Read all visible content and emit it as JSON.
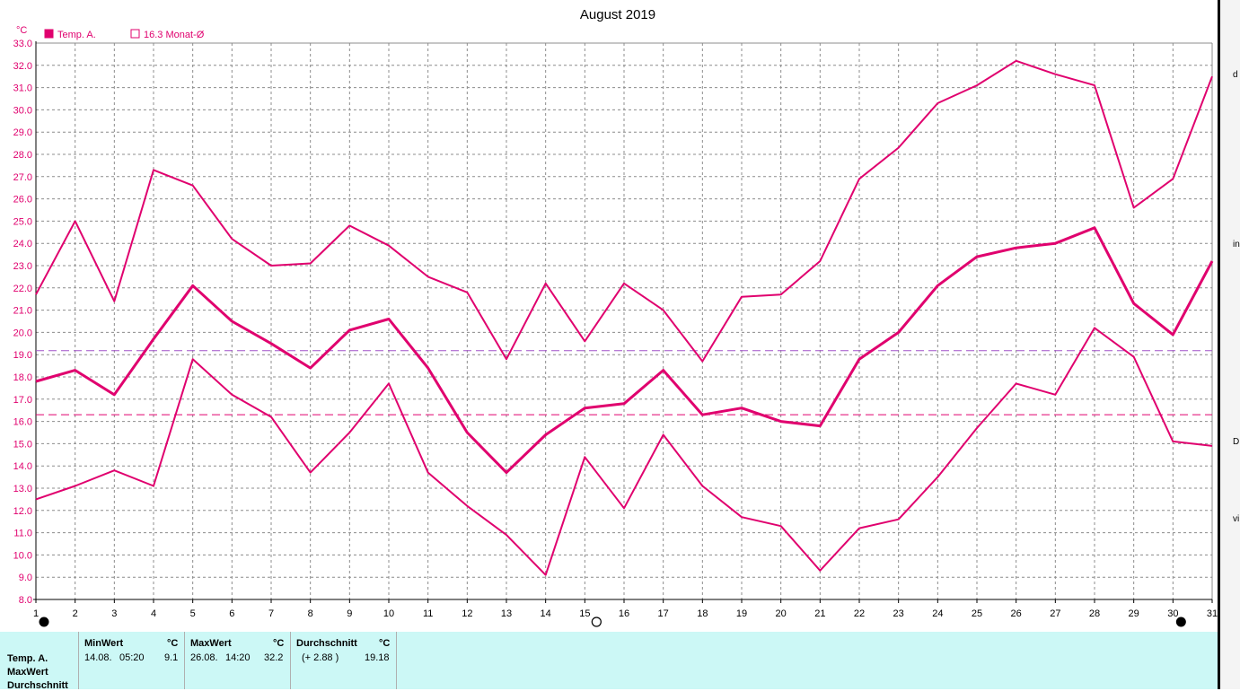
{
  "chart_data": {
    "type": "line",
    "title": "August 2019",
    "unit": "°C",
    "x": [
      1,
      2,
      3,
      4,
      5,
      6,
      7,
      8,
      9,
      10,
      11,
      12,
      13,
      14,
      15,
      16,
      17,
      18,
      19,
      20,
      21,
      22,
      23,
      24,
      25,
      26,
      27,
      28,
      29,
      30,
      31
    ],
    "xlim": [
      1,
      31
    ],
    "ylim": [
      8.0,
      33.0
    ],
    "yticks": [
      "8.0",
      "9.0",
      "10.0",
      "11.0",
      "12.0",
      "13.0",
      "14.0",
      "15.0",
      "16.0",
      "17.0",
      "18.0",
      "19.0",
      "20.0",
      "21.0",
      "22.0",
      "23.0",
      "24.0",
      "25.0",
      "26.0",
      "27.0",
      "28.0",
      "29.0",
      "30.0",
      "31.0",
      "32.0",
      "33.0"
    ],
    "grid": true,
    "legend_position": "top-left",
    "legend": [
      {
        "label": "Temp. A.",
        "style": "filled"
      },
      {
        "label": "16.3 Monat-Ø",
        "style": "outline"
      }
    ],
    "color": "#e0006e",
    "reference_lines": [
      {
        "value": 19.18,
        "color": "#a050c8"
      },
      {
        "value": 16.3,
        "color": "#e0006e"
      }
    ],
    "series": [
      {
        "role": "max",
        "values": [
          21.7,
          25.0,
          21.4,
          27.3,
          26.6,
          24.2,
          23.0,
          23.1,
          24.8,
          23.9,
          22.5,
          21.8,
          18.8,
          22.2,
          19.6,
          22.2,
          21.0,
          18.7,
          21.6,
          21.7,
          23.2,
          26.9,
          28.3,
          30.3,
          31.1,
          32.2,
          31.6,
          31.1,
          25.6,
          26.9,
          31.5
        ]
      },
      {
        "role": "mean",
        "values": [
          17.8,
          18.3,
          17.2,
          19.7,
          22.1,
          20.5,
          19.5,
          18.4,
          20.1,
          20.6,
          18.4,
          15.5,
          13.7,
          15.4,
          16.6,
          16.8,
          18.3,
          16.3,
          16.6,
          16.0,
          15.8,
          18.8,
          20.0,
          22.1,
          23.4,
          23.8,
          24.0,
          24.7,
          21.3,
          19.9,
          23.2
        ]
      },
      {
        "role": "min",
        "values": [
          12.5,
          13.1,
          13.8,
          13.1,
          18.8,
          17.2,
          16.2,
          13.7,
          15.5,
          17.7,
          13.7,
          12.2,
          10.9,
          9.1,
          14.4,
          12.1,
          15.4,
          13.1,
          11.7,
          11.3,
          9.3,
          11.2,
          11.6,
          13.5,
          15.7,
          17.7,
          17.2,
          20.2,
          18.9,
          15.1,
          14.9
        ]
      }
    ],
    "moon_phases": [
      {
        "day": 1,
        "phase": "new-moon"
      },
      {
        "day": 15,
        "phase": "full-moon"
      },
      {
        "day": 30,
        "phase": "new-moon"
      }
    ]
  },
  "right_edge_chars": [
    "d",
    "in",
    "D",
    "vi"
  ],
  "stats": {
    "row_labels": [
      "Temp. A.",
      "MaxWert",
      "Durchschnitt"
    ],
    "min": {
      "header": "MinWert",
      "unit": "°C",
      "date": "14.08.",
      "time": "05:20",
      "value": "9.1"
    },
    "max": {
      "header": "MaxWert",
      "unit": "°C",
      "date": "26.08.",
      "time": "14:20",
      "value": "32.2"
    },
    "avg": {
      "header": "Durchschnitt",
      "unit": "°C",
      "delta": "(+ 2.88 )",
      "value": "19.18"
    }
  }
}
